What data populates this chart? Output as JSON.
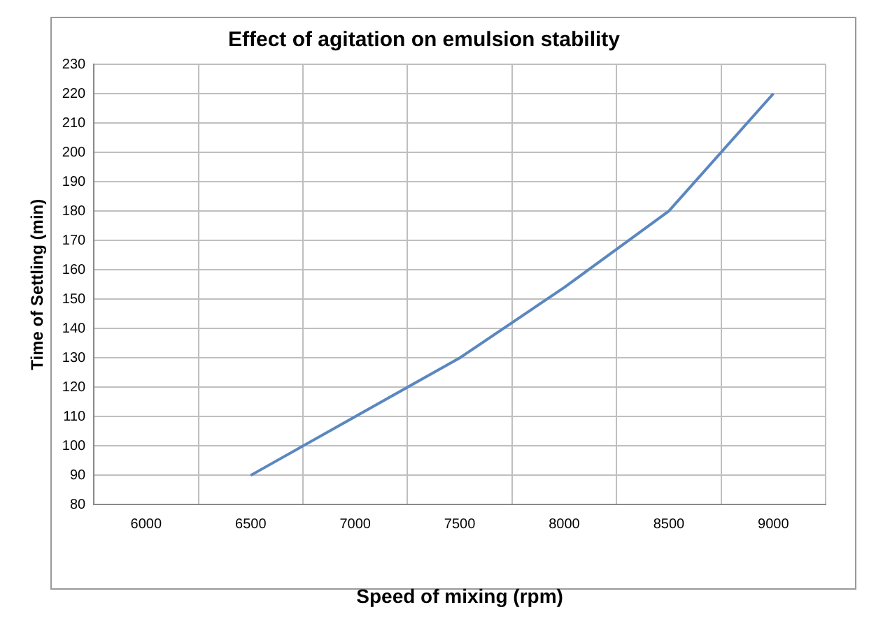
{
  "chart_data": {
    "type": "line",
    "title": "Effect of agitation on emulsion stability",
    "xlabel": "Speed of mixing (rpm)",
    "ylabel": "Time of Settling (min)",
    "categories": [
      "6000",
      "6500",
      "7000",
      "7500",
      "8000",
      "8500",
      "9000"
    ],
    "series": [
      {
        "color": "#5b87c0",
        "values": [
          null,
          90,
          110,
          130,
          154,
          180,
          220
        ]
      }
    ],
    "ylim": [
      80,
      230
    ],
    "yticks": [
      80,
      90,
      100,
      110,
      120,
      130,
      140,
      150,
      160,
      170,
      180,
      190,
      200,
      210,
      220,
      230
    ],
    "grid": true,
    "legend": false,
    "marker": "none",
    "line_style": "solid"
  }
}
